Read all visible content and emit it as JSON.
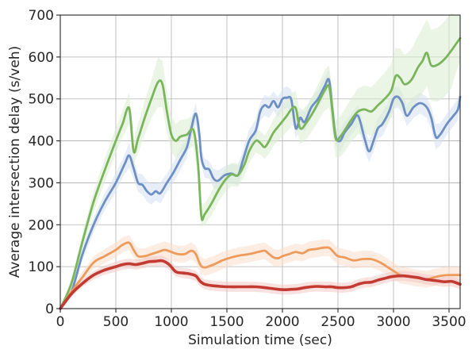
{
  "chart_data": {
    "type": "line",
    "title": "",
    "xlabel": "Simulation time (sec)",
    "ylabel": "Average intersection delay (s/veh)",
    "xlim": [
      0,
      3600
    ],
    "ylim": [
      0,
      700
    ],
    "xticks": [
      0,
      500,
      1000,
      1500,
      2000,
      2500,
      3000,
      3500
    ],
    "yticks": [
      0,
      100,
      200,
      300,
      400,
      500,
      600,
      700
    ],
    "grid": true,
    "legend": "none",
    "series": [
      {
        "color": "#6d8fc4",
        "band_color": "#d6e0f0",
        "x": [
          0,
          100,
          200,
          300,
          400,
          500,
          580,
          620,
          660,
          700,
          740,
          780,
          820,
          860,
          900,
          960,
          1020,
          1080,
          1140,
          1180,
          1220,
          1250,
          1270,
          1300,
          1340,
          1380,
          1420,
          1480,
          1540,
          1600,
          1640,
          1700,
          1760,
          1800,
          1840,
          1880,
          1920,
          1960,
          2000,
          2040,
          2080,
          2120,
          2160,
          2200,
          2260,
          2320,
          2380,
          2420,
          2450,
          2480,
          2520,
          2560,
          2620,
          2680,
          2740,
          2780,
          2820,
          2860,
          2900,
          2960,
          3000,
          3040,
          3080,
          3120,
          3180,
          3240,
          3300,
          3340,
          3380,
          3420,
          3480,
          3540,
          3580,
          3600
        ],
        "y": [
          0,
          40,
          130,
          200,
          255,
          300,
          345,
          365,
          335,
          300,
          295,
          280,
          272,
          280,
          275,
          300,
          325,
          355,
          385,
          430,
          465,
          420,
          360,
          335,
          332,
          310,
          305,
          318,
          322,
          318,
          350,
          400,
          425,
          470,
          485,
          480,
          495,
          480,
          500,
          503,
          498,
          430,
          455,
          445,
          480,
          500,
          530,
          545,
          475,
          410,
          400,
          420,
          440,
          460,
          405,
          375,
          400,
          430,
          440,
          470,
          500,
          505,
          490,
          460,
          480,
          490,
          480,
          455,
          410,
          415,
          440,
          460,
          475,
          505
        ],
        "upper": [
          0,
          50,
          145,
          218,
          275,
          322,
          368,
          395,
          360,
          322,
          320,
          305,
          298,
          300,
          300,
          322,
          350,
          380,
          410,
          455,
          490,
          445,
          380,
          358,
          352,
          333,
          330,
          340,
          345,
          342,
          375,
          425,
          452,
          492,
          510,
          505,
          518,
          505,
          525,
          530,
          522,
          455,
          478,
          470,
          502,
          522,
          552,
          570,
          495,
          430,
          428,
          445,
          465,
          485,
          430,
          402,
          425,
          455,
          468,
          495,
          525,
          530,
          515,
          485,
          505,
          515,
          505,
          482,
          440,
          442,
          465,
          485,
          500,
          530
        ],
        "lower": [
          0,
          32,
          115,
          182,
          235,
          278,
          322,
          335,
          310,
          278,
          272,
          255,
          248,
          258,
          250,
          278,
          300,
          330,
          360,
          405,
          440,
          395,
          340,
          312,
          310,
          288,
          282,
          296,
          300,
          295,
          325,
          375,
          400,
          448,
          460,
          455,
          472,
          455,
          475,
          478,
          475,
          405,
          432,
          420,
          458,
          478,
          508,
          520,
          455,
          390,
          372,
          395,
          415,
          435,
          380,
          348,
          375,
          405,
          412,
          445,
          475,
          480,
          465,
          435,
          455,
          465,
          455,
          428,
          380,
          388,
          415,
          435,
          450,
          480
        ]
      },
      {
        "color": "#7ab55c",
        "band_color": "#d9ecd0",
        "x": [
          0,
          100,
          200,
          300,
          400,
          500,
          560,
          620,
          660,
          700,
          760,
          820,
          880,
          920,
          960,
          1000,
          1040,
          1080,
          1140,
          1200,
          1240,
          1270,
          1300,
          1360,
          1420,
          1480,
          1540,
          1600,
          1660,
          1700,
          1760,
          1800,
          1840,
          1880,
          1920,
          1980,
          2040,
          2080,
          2120,
          2160,
          2220,
          2280,
          2340,
          2380,
          2420,
          2450,
          2480,
          2520,
          2560,
          2620,
          2680,
          2740,
          2800,
          2860,
          2920,
          2980,
          3020,
          3060,
          3100,
          3160,
          3220,
          3260,
          3300,
          3340,
          3400,
          3460,
          3520,
          3560,
          3600
        ],
        "y": [
          0,
          60,
          160,
          255,
          330,
          400,
          440,
          478,
          375,
          405,
          455,
          500,
          540,
          535,
          470,
          415,
          400,
          410,
          415,
          425,
          345,
          220,
          225,
          250,
          280,
          305,
          320,
          318,
          345,
          375,
          400,
          395,
          385,
          400,
          420,
          440,
          460,
          475,
          478,
          430,
          445,
          470,
          500,
          520,
          530,
          470,
          405,
          410,
          425,
          450,
          470,
          475,
          470,
          485,
          500,
          520,
          555,
          550,
          535,
          545,
          575,
          590,
          610,
          580,
          582,
          595,
          615,
          630,
          645
        ],
        "upper": [
          0,
          72,
          180,
          280,
          358,
          430,
          472,
          515,
          405,
          440,
          495,
          545,
          600,
          590,
          520,
          458,
          440,
          450,
          452,
          462,
          380,
          245,
          250,
          278,
          308,
          333,
          348,
          346,
          373,
          403,
          428,
          423,
          413,
          430,
          452,
          475,
          498,
          515,
          518,
          468,
          485,
          512,
          545,
          568,
          580,
          520,
          450,
          458,
          475,
          502,
          525,
          532,
          528,
          545,
          562,
          585,
          622,
          620,
          605,
          618,
          650,
          668,
          690,
          665,
          670,
          685,
          705,
          700,
          700
        ],
        "lower": [
          0,
          48,
          140,
          230,
          302,
          370,
          408,
          442,
          345,
          370,
          415,
          455,
          480,
          480,
          420,
          372,
          360,
          370,
          378,
          388,
          310,
          195,
          200,
          222,
          252,
          277,
          292,
          290,
          317,
          347,
          372,
          367,
          357,
          370,
          388,
          405,
          422,
          435,
          438,
          392,
          405,
          428,
          455,
          472,
          480,
          420,
          360,
          362,
          375,
          398,
          415,
          418,
          412,
          425,
          438,
          455,
          488,
          480,
          465,
          472,
          500,
          512,
          530,
          495,
          494,
          505,
          525,
          560,
          590
        ]
      },
      {
        "color": "#ee9a5a",
        "band_color": "#f9dccb",
        "x": [
          0,
          100,
          200,
          300,
          400,
          500,
          560,
          620,
          660,
          700,
          760,
          820,
          880,
          940,
          1000,
          1060,
          1120,
          1180,
          1220,
          1260,
          1300,
          1380,
          1460,
          1540,
          1620,
          1700,
          1780,
          1840,
          1880,
          1920,
          1960,
          2000,
          2060,
          2120,
          2180,
          2240,
          2300,
          2360,
          2420,
          2460,
          2500,
          2560,
          2640,
          2720,
          2800,
          2880,
          2940,
          3000,
          3060,
          3120,
          3180,
          3240,
          3300,
          3360,
          3420,
          3480,
          3540,
          3600
        ],
        "y": [
          0,
          40,
          75,
          110,
          125,
          140,
          152,
          157,
          140,
          125,
          125,
          130,
          135,
          140,
          135,
          130,
          130,
          138,
          130,
          105,
          98,
          105,
          115,
          122,
          127,
          130,
          135,
          138,
          130,
          122,
          120,
          125,
          130,
          135,
          132,
          140,
          142,
          145,
          145,
          135,
          125,
          122,
          115,
          118,
          118,
          110,
          100,
          90,
          80,
          78,
          74,
          72,
          70,
          74,
          78,
          80,
          80,
          80
        ],
        "upper": [
          0,
          48,
          88,
          125,
          142,
          158,
          170,
          175,
          158,
          143,
          143,
          150,
          155,
          160,
          155,
          150,
          150,
          158,
          150,
          125,
          118,
          125,
          135,
          142,
          147,
          150,
          155,
          158,
          150,
          142,
          140,
          145,
          150,
          155,
          152,
          160,
          162,
          165,
          165,
          155,
          145,
          142,
          135,
          138,
          138,
          130,
          120,
          110,
          100,
          98,
          94,
          92,
          90,
          94,
          98,
          100,
          100,
          100
        ],
        "lower": [
          0,
          32,
          62,
          95,
          108,
          122,
          134,
          139,
          122,
          107,
          107,
          110,
          115,
          120,
          115,
          110,
          110,
          118,
          110,
          85,
          78,
          85,
          95,
          102,
          107,
          110,
          115,
          118,
          110,
          102,
          100,
          105,
          110,
          115,
          112,
          120,
          122,
          125,
          125,
          115,
          105,
          102,
          95,
          98,
          98,
          90,
          80,
          70,
          60,
          58,
          54,
          52,
          50,
          54,
          58,
          60,
          60,
          60
        ]
      },
      {
        "color": "#c23a32",
        "band_color": "#f2c8c4",
        "x": [
          0,
          100,
          200,
          300,
          400,
          500,
          560,
          620,
          680,
          740,
          800,
          860,
          920,
          980,
          1040,
          1100,
          1160,
          1220,
          1260,
          1300,
          1360,
          1440,
          1520,
          1600,
          1680,
          1760,
          1840,
          1900,
          1960,
          2020,
          2080,
          2140,
          2200,
          2260,
          2320,
          2380,
          2440,
          2500,
          2560,
          2620,
          2680,
          2740,
          2800,
          2860,
          2920,
          2980,
          3040,
          3100,
          3160,
          3220,
          3280,
          3340,
          3400,
          3460,
          3520,
          3560,
          3600
        ],
        "y": [
          0,
          35,
          60,
          80,
          92,
          100,
          105,
          107,
          105,
          108,
          112,
          113,
          114,
          105,
          88,
          85,
          83,
          78,
          65,
          58,
          55,
          53,
          52,
          52,
          52,
          52,
          50,
          48,
          46,
          45,
          46,
          47,
          50,
          52,
          53,
          52,
          52,
          50,
          50,
          52,
          58,
          62,
          63,
          68,
          72,
          76,
          78,
          78,
          76,
          74,
          70,
          68,
          66,
          64,
          65,
          62,
          58
        ],
        "upper": [
          0,
          40,
          68,
          90,
          103,
          112,
          117,
          119,
          117,
          120,
          124,
          125,
          126,
          117,
          100,
          97,
          95,
          90,
          77,
          70,
          67,
          65,
          64,
          64,
          64,
          64,
          62,
          60,
          58,
          57,
          58,
          59,
          62,
          64,
          65,
          64,
          64,
          62,
          62,
          64,
          70,
          74,
          75,
          80,
          84,
          88,
          90,
          90,
          88,
          86,
          82,
          80,
          78,
          76,
          77,
          74,
          70
        ],
        "lower": [
          0,
          30,
          52,
          70,
          81,
          88,
          93,
          95,
          93,
          96,
          100,
          101,
          102,
          93,
          76,
          73,
          71,
          66,
          53,
          46,
          43,
          41,
          40,
          40,
          40,
          40,
          38,
          36,
          34,
          33,
          34,
          35,
          38,
          40,
          41,
          40,
          40,
          38,
          38,
          40,
          46,
          50,
          51,
          56,
          60,
          64,
          66,
          66,
          64,
          62,
          58,
          56,
          54,
          52,
          53,
          50,
          46
        ]
      }
    ]
  }
}
